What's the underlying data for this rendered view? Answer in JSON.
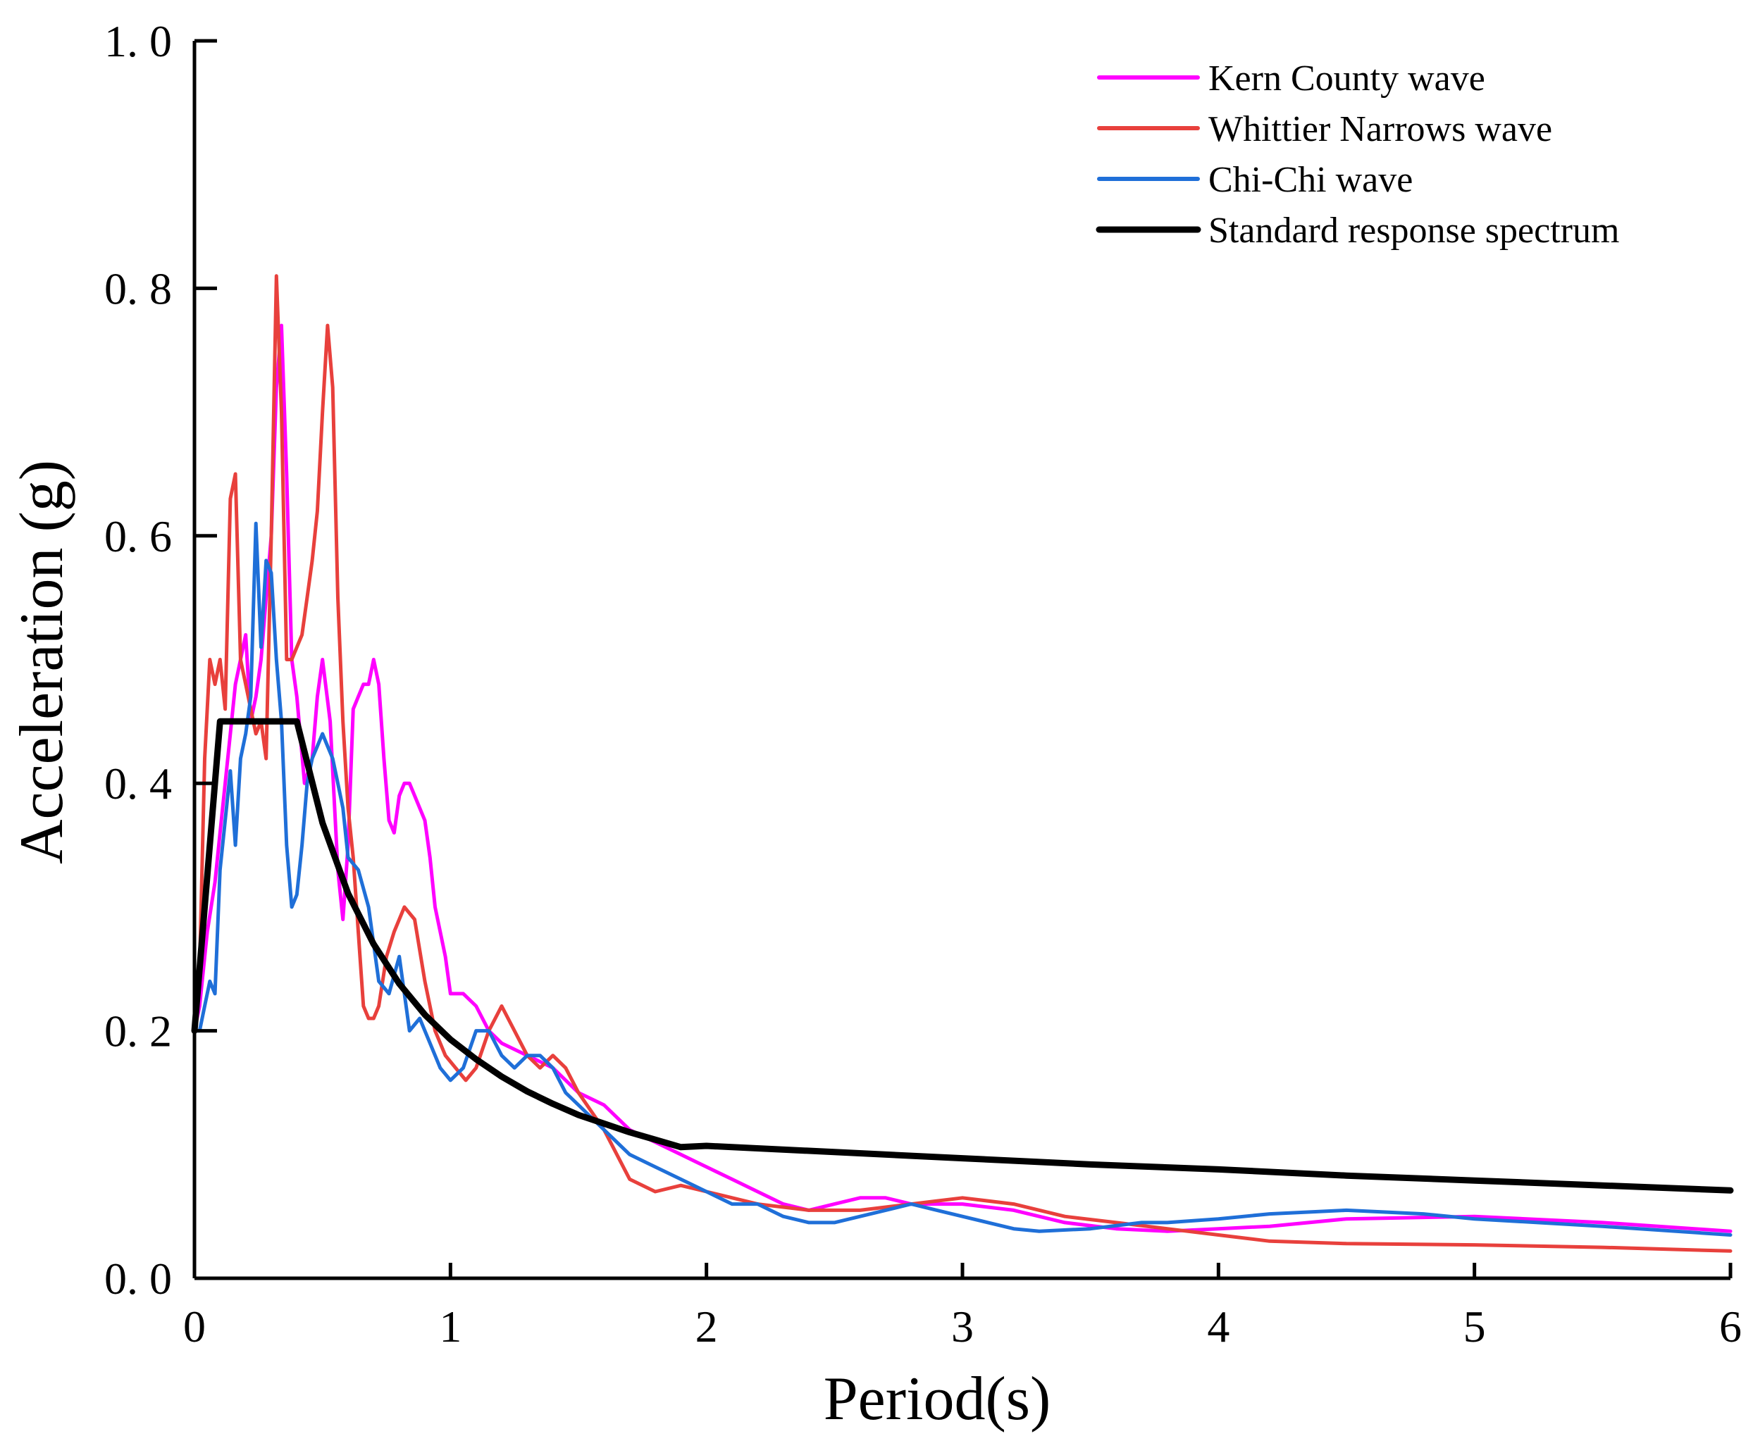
{
  "chart_data": {
    "type": "line",
    "title": "",
    "xlabel": "Period(s)",
    "ylabel": "Acceleration (g)",
    "xlim": [
      0,
      6
    ],
    "ylim": [
      0,
      1.0
    ],
    "x_ticks": [
      0,
      1,
      2,
      3,
      4,
      5,
      6
    ],
    "x_tick_labels": [
      "0",
      "1",
      "2",
      "3",
      "4",
      "5",
      "6"
    ],
    "y_ticks": [
      0,
      0.2,
      0.4,
      0.6,
      0.8,
      1.0
    ],
    "y_tick_labels": [
      "0. 0",
      "0. 2",
      "0. 4",
      "0. 6",
      "0. 8",
      "1. 0"
    ],
    "grid": false,
    "legend_position": "top-right",
    "series": [
      {
        "name": "Kern County wave",
        "color": "#ff00ff",
        "x": [
          0,
          0.02,
          0.05,
          0.08,
          0.1,
          0.12,
          0.14,
          0.16,
          0.18,
          0.2,
          0.22,
          0.24,
          0.26,
          0.28,
          0.3,
          0.32,
          0.34,
          0.36,
          0.38,
          0.4,
          0.43,
          0.46,
          0.48,
          0.5,
          0.53,
          0.56,
          0.58,
          0.6,
          0.62,
          0.64,
          0.66,
          0.68,
          0.7,
          0.72,
          0.74,
          0.76,
          0.78,
          0.8,
          0.82,
          0.84,
          0.86,
          0.88,
          0.9,
          0.92,
          0.94,
          0.96,
          0.98,
          1.0,
          1.05,
          1.1,
          1.15,
          1.2,
          1.25,
          1.3,
          1.35,
          1.4,
          1.5,
          1.6,
          1.7,
          1.8,
          1.9,
          2.0,
          2.1,
          2.2,
          2.3,
          2.4,
          2.5,
          2.6,
          2.7,
          2.8,
          2.9,
          3.0,
          3.2,
          3.4,
          3.6,
          3.8,
          4.0,
          4.2,
          4.5,
          5.0,
          5.5,
          6.0
        ],
        "y": [
          0.2,
          0.22,
          0.28,
          0.32,
          0.36,
          0.4,
          0.44,
          0.48,
          0.5,
          0.52,
          0.45,
          0.47,
          0.5,
          0.55,
          0.6,
          0.72,
          0.77,
          0.65,
          0.5,
          0.47,
          0.4,
          0.42,
          0.47,
          0.5,
          0.45,
          0.33,
          0.29,
          0.35,
          0.46,
          0.47,
          0.48,
          0.48,
          0.5,
          0.48,
          0.42,
          0.37,
          0.36,
          0.39,
          0.4,
          0.4,
          0.39,
          0.38,
          0.37,
          0.34,
          0.3,
          0.28,
          0.26,
          0.23,
          0.23,
          0.22,
          0.2,
          0.19,
          0.185,
          0.18,
          0.175,
          0.17,
          0.15,
          0.14,
          0.12,
          0.11,
          0.1,
          0.09,
          0.08,
          0.07,
          0.06,
          0.055,
          0.06,
          0.065,
          0.065,
          0.06,
          0.06,
          0.06,
          0.055,
          0.045,
          0.04,
          0.038,
          0.04,
          0.042,
          0.048,
          0.05,
          0.045,
          0.038
        ]
      },
      {
        "name": "Whittier Narrows wave",
        "color": "#e8403c",
        "x": [
          0,
          0.02,
          0.04,
          0.06,
          0.08,
          0.1,
          0.12,
          0.14,
          0.16,
          0.18,
          0.2,
          0.22,
          0.24,
          0.26,
          0.28,
          0.3,
          0.32,
          0.34,
          0.36,
          0.38,
          0.4,
          0.42,
          0.44,
          0.46,
          0.48,
          0.5,
          0.52,
          0.54,
          0.56,
          0.58,
          0.6,
          0.62,
          0.64,
          0.66,
          0.68,
          0.7,
          0.72,
          0.75,
          0.78,
          0.82,
          0.86,
          0.9,
          0.94,
          0.98,
          1.02,
          1.06,
          1.1,
          1.15,
          1.2,
          1.25,
          1.3,
          1.35,
          1.4,
          1.45,
          1.5,
          1.6,
          1.7,
          1.8,
          1.9,
          2.0,
          2.2,
          2.4,
          2.6,
          2.8,
          3.0,
          3.2,
          3.4,
          3.6,
          3.8,
          4.0,
          4.2,
          4.5,
          5.0,
          5.5,
          6.0
        ],
        "y": [
          0.2,
          0.25,
          0.42,
          0.5,
          0.48,
          0.5,
          0.46,
          0.63,
          0.65,
          0.5,
          0.48,
          0.46,
          0.44,
          0.45,
          0.42,
          0.6,
          0.81,
          0.7,
          0.5,
          0.5,
          0.51,
          0.52,
          0.55,
          0.58,
          0.62,
          0.7,
          0.77,
          0.72,
          0.55,
          0.45,
          0.38,
          0.34,
          0.28,
          0.22,
          0.21,
          0.21,
          0.22,
          0.26,
          0.28,
          0.3,
          0.29,
          0.24,
          0.2,
          0.18,
          0.17,
          0.16,
          0.17,
          0.2,
          0.22,
          0.2,
          0.18,
          0.17,
          0.18,
          0.17,
          0.15,
          0.12,
          0.08,
          0.07,
          0.075,
          0.07,
          0.06,
          0.055,
          0.055,
          0.06,
          0.065,
          0.06,
          0.05,
          0.045,
          0.04,
          0.035,
          0.03,
          0.028,
          0.027,
          0.025,
          0.022
        ]
      },
      {
        "name": "Chi-Chi wave",
        "color": "#1f6fd8",
        "x": [
          0,
          0.02,
          0.04,
          0.06,
          0.08,
          0.1,
          0.12,
          0.14,
          0.16,
          0.18,
          0.2,
          0.22,
          0.24,
          0.26,
          0.28,
          0.3,
          0.32,
          0.34,
          0.36,
          0.38,
          0.4,
          0.42,
          0.44,
          0.46,
          0.48,
          0.5,
          0.52,
          0.54,
          0.56,
          0.58,
          0.6,
          0.64,
          0.68,
          0.72,
          0.76,
          0.8,
          0.84,
          0.88,
          0.92,
          0.96,
          1.0,
          1.05,
          1.1,
          1.15,
          1.2,
          1.25,
          1.3,
          1.35,
          1.4,
          1.45,
          1.5,
          1.6,
          1.7,
          1.8,
          1.9,
          2.0,
          2.1,
          2.2,
          2.3,
          2.4,
          2.5,
          2.6,
          2.7,
          2.8,
          2.9,
          3.0,
          3.1,
          3.2,
          3.3,
          3.5,
          3.7,
          3.8,
          4.0,
          4.2,
          4.5,
          4.8,
          5.0,
          5.5,
          6.0
        ],
        "y": [
          0.2,
          0.2,
          0.22,
          0.24,
          0.23,
          0.33,
          0.37,
          0.41,
          0.35,
          0.42,
          0.44,
          0.47,
          0.61,
          0.51,
          0.58,
          0.57,
          0.5,
          0.45,
          0.35,
          0.3,
          0.31,
          0.35,
          0.4,
          0.42,
          0.43,
          0.44,
          0.43,
          0.42,
          0.4,
          0.38,
          0.34,
          0.33,
          0.3,
          0.24,
          0.23,
          0.26,
          0.2,
          0.21,
          0.19,
          0.17,
          0.16,
          0.17,
          0.2,
          0.2,
          0.18,
          0.17,
          0.18,
          0.18,
          0.17,
          0.15,
          0.14,
          0.12,
          0.1,
          0.09,
          0.08,
          0.07,
          0.06,
          0.06,
          0.05,
          0.045,
          0.045,
          0.05,
          0.055,
          0.06,
          0.055,
          0.05,
          0.045,
          0.04,
          0.038,
          0.04,
          0.045,
          0.045,
          0.048,
          0.052,
          0.055,
          0.052,
          0.048,
          0.042,
          0.035
        ]
      },
      {
        "name": "Standard response spectrum",
        "color": "#000000",
        "x": [
          0,
          0.1,
          0.4,
          0.5,
          0.6,
          0.7,
          0.8,
          0.9,
          1.0,
          1.1,
          1.2,
          1.3,
          1.4,
          1.5,
          1.6,
          1.7,
          1.8,
          1.9,
          2.0,
          2.5,
          3.0,
          3.5,
          4.0,
          4.5,
          5.0,
          5.5,
          6.0
        ],
        "y": [
          0.2,
          0.45,
          0.45,
          0.368,
          0.311,
          0.27,
          0.238,
          0.213,
          0.193,
          0.177,
          0.163,
          0.151,
          0.141,
          0.132,
          0.125,
          0.118,
          0.112,
          0.106,
          0.107,
          0.102,
          0.097,
          0.092,
          0.088,
          0.083,
          0.079,
          0.075,
          0.071
        ]
      }
    ]
  }
}
